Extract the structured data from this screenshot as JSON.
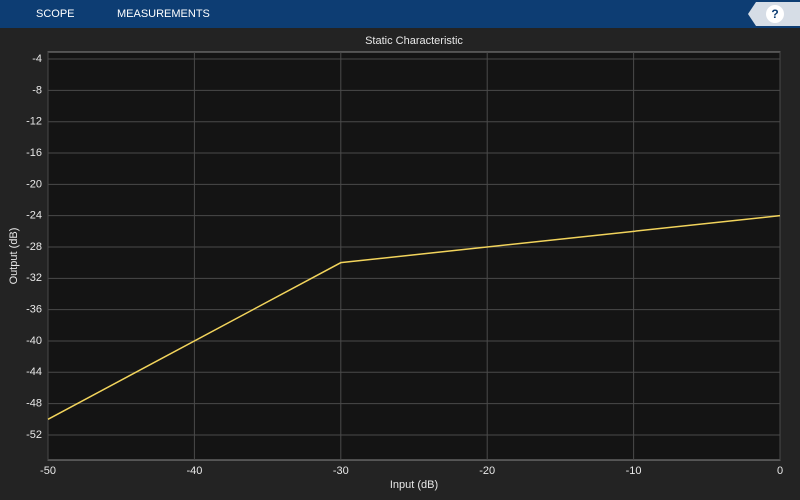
{
  "toolbar": {
    "tabs": [
      "SCOPE",
      "MEASUREMENTS"
    ],
    "help": "?"
  },
  "chart_data": {
    "type": "line",
    "title": "Static Characteristic",
    "x_label": "Input (dB)",
    "y_label": "Output (dB)",
    "x": [
      -50,
      -30,
      0
    ],
    "values": [
      -50,
      -30,
      -24
    ],
    "color": "#f2d45c",
    "xlim": [
      -50,
      0
    ],
    "xticks": [
      -50,
      -40,
      -30,
      -20,
      -10,
      0
    ],
    "ylim": [
      -55.2,
      -3.1
    ],
    "yticks": [
      -52,
      -48,
      -44,
      -40,
      -36,
      -32,
      -28,
      -24,
      -20,
      -16,
      -12,
      -8,
      -4
    ],
    "grid": true
  }
}
